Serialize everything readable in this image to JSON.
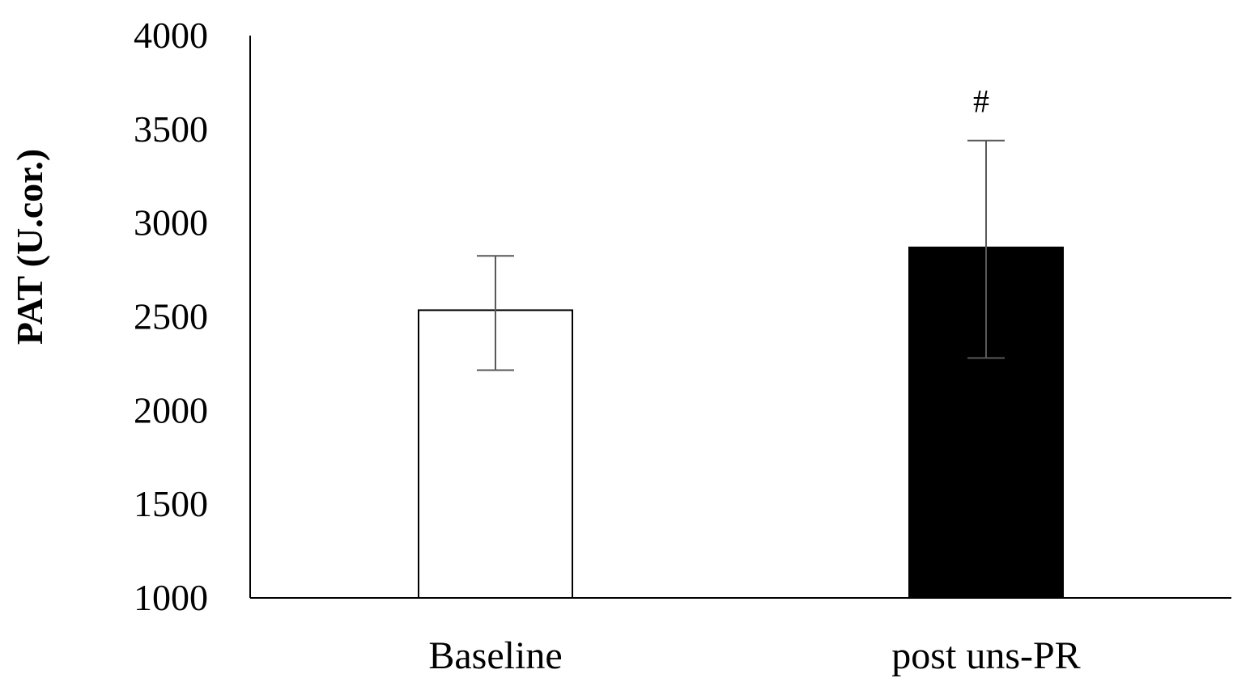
{
  "chart_data": {
    "type": "bar",
    "title": "",
    "xlabel": "",
    "ylabel": "PAT (U.cor.)",
    "ylim": [
      1000,
      4000
    ],
    "yticks": [
      1000,
      1500,
      2000,
      2500,
      3000,
      3500,
      4000
    ],
    "yticks_labels": [
      "1000",
      "1500",
      "2000",
      "2500",
      "3000",
      "3500",
      "4000"
    ],
    "categories": [
      "Baseline",
      "post uns-PR"
    ],
    "values": [
      2535,
      2870
    ],
    "error_bars": [
      {
        "low": 2215,
        "high": 2825
      },
      {
        "low": 2280,
        "high": 3440
      }
    ],
    "bar_fill": [
      "#ffffff",
      "#000000"
    ],
    "bar_stroke": "#000000",
    "error_bar_color": "#595959",
    "annotations": [
      {
        "category": "post uns-PR",
        "text": "#"
      }
    ],
    "grid": false,
    "legend": "none"
  }
}
